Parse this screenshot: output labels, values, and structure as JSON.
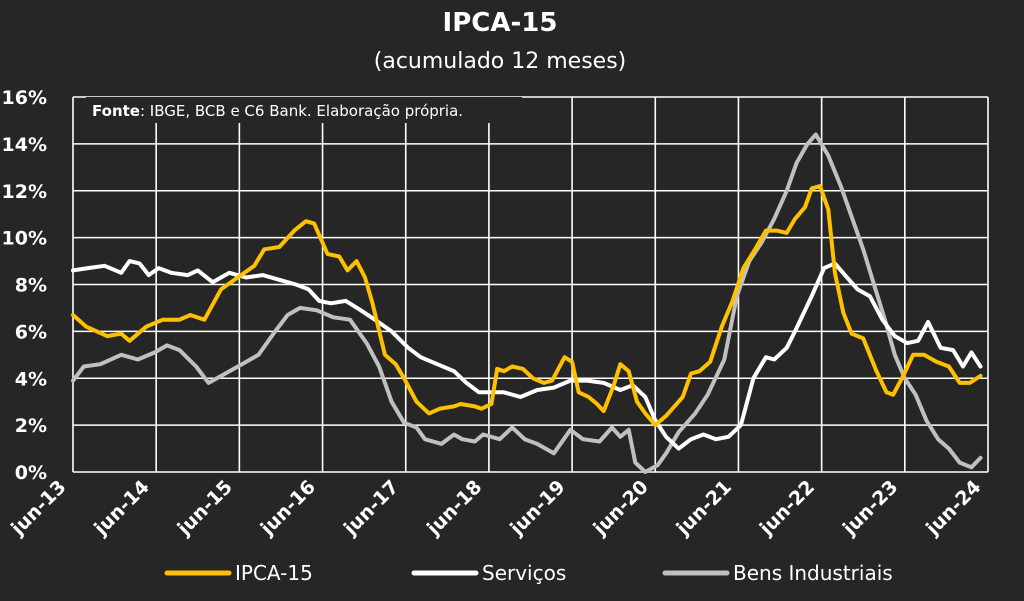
{
  "chart_data": {
    "type": "line",
    "title": "IPCA-15",
    "subtitle": "(acumulado 12 meses)",
    "note_label": "Fonte",
    "note_text": ": IBGE, BCB e C6 Bank. Elaboração própria.",
    "yticks": [
      "0%",
      "2%",
      "4%",
      "6%",
      "8%",
      "10%",
      "12%",
      "14%",
      "16%"
    ],
    "ylim": [
      0,
      16
    ],
    "xticks": [
      "jun-13",
      "jun-14",
      "jun-15",
      "jun-16",
      "jun-17",
      "jun-18",
      "jun-19",
      "jun-20",
      "jun-21",
      "jun-22",
      "jun-23",
      "jun-24"
    ],
    "grid": true,
    "legend_position": "bottom",
    "series": [
      {
        "name": "IPCA-15",
        "color": "#FFC000",
        "points": [
          [
            2013.42,
            6.7
          ],
          [
            2013.58,
            6.2
          ],
          [
            2013.83,
            5.8
          ],
          [
            2014.0,
            5.9
          ],
          [
            2014.1,
            5.6
          ],
          [
            2014.3,
            6.2
          ],
          [
            2014.5,
            6.5
          ],
          [
            2014.7,
            6.5
          ],
          [
            2014.83,
            6.7
          ],
          [
            2015.0,
            6.5
          ],
          [
            2015.2,
            7.8
          ],
          [
            2015.4,
            8.3
          ],
          [
            2015.6,
            8.8
          ],
          [
            2015.72,
            9.5
          ],
          [
            2015.9,
            9.6
          ],
          [
            2016.08,
            10.3
          ],
          [
            2016.22,
            10.7
          ],
          [
            2016.32,
            10.6
          ],
          [
            2016.48,
            9.3
          ],
          [
            2016.62,
            9.2
          ],
          [
            2016.72,
            8.6
          ],
          [
            2016.83,
            9.0
          ],
          [
            2016.93,
            8.3
          ],
          [
            2017.02,
            7.2
          ],
          [
            2017.17,
            5.0
          ],
          [
            2017.3,
            4.6
          ],
          [
            2017.4,
            4.0
          ],
          [
            2017.55,
            3.0
          ],
          [
            2017.7,
            2.5
          ],
          [
            2017.83,
            2.7
          ],
          [
            2018.0,
            2.8
          ],
          [
            2018.08,
            2.9
          ],
          [
            2018.25,
            2.8
          ],
          [
            2018.33,
            2.7
          ],
          [
            2018.45,
            2.9
          ],
          [
            2018.52,
            4.4
          ],
          [
            2018.6,
            4.3
          ],
          [
            2018.7,
            4.5
          ],
          [
            2018.83,
            4.4
          ],
          [
            2018.95,
            4.0
          ],
          [
            2019.08,
            3.8
          ],
          [
            2019.18,
            3.9
          ],
          [
            2019.33,
            4.9
          ],
          [
            2019.42,
            4.7
          ],
          [
            2019.5,
            3.4
          ],
          [
            2019.62,
            3.2
          ],
          [
            2019.72,
            2.9
          ],
          [
            2019.8,
            2.6
          ],
          [
            2019.92,
            3.7
          ],
          [
            2020.0,
            4.6
          ],
          [
            2020.1,
            4.3
          ],
          [
            2020.2,
            3.0
          ],
          [
            2020.3,
            2.5
          ],
          [
            2020.42,
            2.0
          ],
          [
            2020.55,
            2.4
          ],
          [
            2020.65,
            2.8
          ],
          [
            2020.75,
            3.2
          ],
          [
            2020.85,
            4.2
          ],
          [
            2020.95,
            4.3
          ],
          [
            2021.08,
            4.7
          ],
          [
            2021.22,
            6.2
          ],
          [
            2021.35,
            7.3
          ],
          [
            2021.48,
            8.7
          ],
          [
            2021.62,
            9.5
          ],
          [
            2021.75,
            10.3
          ],
          [
            2021.88,
            10.3
          ],
          [
            2022.0,
            10.2
          ],
          [
            2022.1,
            10.8
          ],
          [
            2022.22,
            11.3
          ],
          [
            2022.3,
            12.1
          ],
          [
            2022.4,
            12.2
          ],
          [
            2022.5,
            11.2
          ],
          [
            2022.58,
            8.5
          ],
          [
            2022.68,
            6.8
          ],
          [
            2022.78,
            5.9
          ],
          [
            2022.92,
            5.7
          ],
          [
            2023.08,
            4.3
          ],
          [
            2023.2,
            3.4
          ],
          [
            2023.28,
            3.3
          ],
          [
            2023.4,
            4.1
          ],
          [
            2023.52,
            5.0
          ],
          [
            2023.65,
            5.0
          ],
          [
            2023.8,
            4.7
          ],
          [
            2023.95,
            4.5
          ],
          [
            2024.08,
            3.8
          ],
          [
            2024.2,
            3.8
          ],
          [
            2024.33,
            4.1
          ]
        ]
      },
      {
        "name": "Serviços",
        "color": "#FFFFFF",
        "points": [
          [
            2013.42,
            8.6
          ],
          [
            2013.6,
            8.7
          ],
          [
            2013.8,
            8.8
          ],
          [
            2014.0,
            8.5
          ],
          [
            2014.1,
            9.0
          ],
          [
            2014.22,
            8.9
          ],
          [
            2014.33,
            8.4
          ],
          [
            2014.45,
            8.7
          ],
          [
            2014.6,
            8.5
          ],
          [
            2014.8,
            8.4
          ],
          [
            2014.92,
            8.6
          ],
          [
            2015.1,
            8.1
          ],
          [
            2015.3,
            8.5
          ],
          [
            2015.5,
            8.3
          ],
          [
            2015.7,
            8.4
          ],
          [
            2015.9,
            8.2
          ],
          [
            2016.1,
            8.0
          ],
          [
            2016.25,
            7.8
          ],
          [
            2016.38,
            7.3
          ],
          [
            2016.52,
            7.2
          ],
          [
            2016.7,
            7.3
          ],
          [
            2016.88,
            6.9
          ],
          [
            2017.05,
            6.5
          ],
          [
            2017.25,
            6.0
          ],
          [
            2017.45,
            5.3
          ],
          [
            2017.6,
            4.9
          ],
          [
            2017.8,
            4.6
          ],
          [
            2018.0,
            4.3
          ],
          [
            2018.15,
            3.8
          ],
          [
            2018.3,
            3.4
          ],
          [
            2018.45,
            3.4
          ],
          [
            2018.6,
            3.4
          ],
          [
            2018.8,
            3.2
          ],
          [
            2019.0,
            3.5
          ],
          [
            2019.2,
            3.6
          ],
          [
            2019.4,
            3.9
          ],
          [
            2019.6,
            3.9
          ],
          [
            2019.8,
            3.8
          ],
          [
            2020.0,
            3.5
          ],
          [
            2020.15,
            3.7
          ],
          [
            2020.3,
            3.2
          ],
          [
            2020.42,
            2.2
          ],
          [
            2020.55,
            1.5
          ],
          [
            2020.7,
            1.0
          ],
          [
            2020.85,
            1.4
          ],
          [
            2021.0,
            1.6
          ],
          [
            2021.15,
            1.4
          ],
          [
            2021.3,
            1.5
          ],
          [
            2021.45,
            2.0
          ],
          [
            2021.6,
            4.0
          ],
          [
            2021.75,
            4.9
          ],
          [
            2021.85,
            4.8
          ],
          [
            2022.0,
            5.3
          ],
          [
            2022.1,
            6.0
          ],
          [
            2022.3,
            7.5
          ],
          [
            2022.45,
            8.7
          ],
          [
            2022.58,
            8.9
          ],
          [
            2022.7,
            8.4
          ],
          [
            2022.85,
            7.8
          ],
          [
            2023.0,
            7.5
          ],
          [
            2023.15,
            6.5
          ],
          [
            2023.3,
            5.8
          ],
          [
            2023.45,
            5.5
          ],
          [
            2023.58,
            5.6
          ],
          [
            2023.7,
            6.4
          ],
          [
            2023.85,
            5.3
          ],
          [
            2024.0,
            5.2
          ],
          [
            2024.12,
            4.5
          ],
          [
            2024.22,
            5.1
          ],
          [
            2024.33,
            4.5
          ]
        ]
      },
      {
        "name": "Bens Industriais",
        "color": "#C0C0C0",
        "points": [
          [
            2013.42,
            3.9
          ],
          [
            2013.55,
            4.5
          ],
          [
            2013.75,
            4.6
          ],
          [
            2014.0,
            5.0
          ],
          [
            2014.2,
            4.8
          ],
          [
            2014.4,
            5.1
          ],
          [
            2014.55,
            5.4
          ],
          [
            2014.7,
            5.2
          ],
          [
            2014.9,
            4.5
          ],
          [
            2015.05,
            3.8
          ],
          [
            2015.25,
            4.2
          ],
          [
            2015.45,
            4.6
          ],
          [
            2015.65,
            5.0
          ],
          [
            2015.85,
            6.0
          ],
          [
            2016.0,
            6.7
          ],
          [
            2016.15,
            7.0
          ],
          [
            2016.35,
            6.9
          ],
          [
            2016.55,
            6.6
          ],
          [
            2016.75,
            6.5
          ],
          [
            2016.95,
            5.5
          ],
          [
            2017.1,
            4.5
          ],
          [
            2017.25,
            3.0
          ],
          [
            2017.4,
            2.1
          ],
          [
            2017.55,
            1.9
          ],
          [
            2017.65,
            1.4
          ],
          [
            2017.85,
            1.2
          ],
          [
            2018.0,
            1.6
          ],
          [
            2018.1,
            1.4
          ],
          [
            2018.25,
            1.3
          ],
          [
            2018.35,
            1.6
          ],
          [
            2018.55,
            1.4
          ],
          [
            2018.7,
            1.9
          ],
          [
            2018.85,
            1.4
          ],
          [
            2019.0,
            1.2
          ],
          [
            2019.2,
            0.8
          ],
          [
            2019.4,
            1.8
          ],
          [
            2019.55,
            1.4
          ],
          [
            2019.75,
            1.3
          ],
          [
            2019.9,
            1.9
          ],
          [
            2020.0,
            1.5
          ],
          [
            2020.1,
            1.8
          ],
          [
            2020.18,
            0.4
          ],
          [
            2020.3,
            0.0
          ],
          [
            2020.45,
            0.3
          ],
          [
            2020.55,
            0.8
          ],
          [
            2020.7,
            1.7
          ],
          [
            2020.9,
            2.5
          ],
          [
            2021.05,
            3.3
          ],
          [
            2021.25,
            4.8
          ],
          [
            2021.4,
            7.5
          ],
          [
            2021.55,
            9.0
          ],
          [
            2021.7,
            9.8
          ],
          [
            2021.85,
            10.8
          ],
          [
            2022.0,
            12.0
          ],
          [
            2022.12,
            13.2
          ],
          [
            2022.25,
            14.0
          ],
          [
            2022.35,
            14.4
          ],
          [
            2022.5,
            13.5
          ],
          [
            2022.65,
            12.2
          ],
          [
            2022.8,
            10.7
          ],
          [
            2022.92,
            9.5
          ],
          [
            2023.05,
            8.0
          ],
          [
            2023.18,
            6.5
          ],
          [
            2023.3,
            5.0
          ],
          [
            2023.42,
            4.0
          ],
          [
            2023.55,
            3.3
          ],
          [
            2023.68,
            2.2
          ],
          [
            2023.82,
            1.4
          ],
          [
            2023.95,
            1.0
          ],
          [
            2024.08,
            0.4
          ],
          [
            2024.22,
            0.2
          ],
          [
            2024.33,
            0.6
          ]
        ]
      }
    ]
  }
}
